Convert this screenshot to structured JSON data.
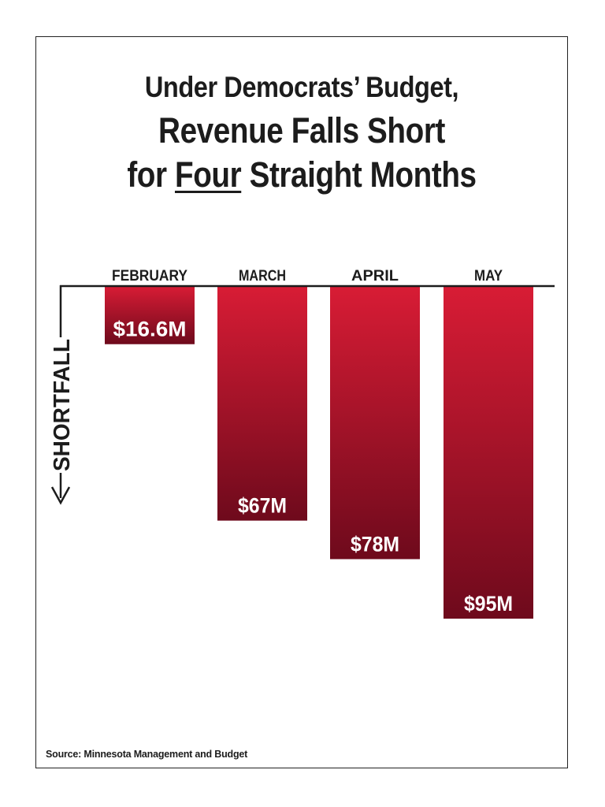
{
  "title": {
    "line1": "Under Democrats’ Budget,",
    "line2": "Revenue Falls Short",
    "line3_pre": "for ",
    "line3_underlined": "Four",
    "line3_post": " Straight Months"
  },
  "chart_data": {
    "type": "bar",
    "orientation": "downward",
    "categories": [
      "FEBRUARY",
      "MARCH",
      "APRIL",
      "MAY"
    ],
    "values": [
      16.6,
      67,
      78,
      95
    ],
    "value_labels": [
      "$16.6M",
      "$67M",
      "$78M",
      "$95M"
    ],
    "ylabel": "SHORTFALL",
    "ylim": [
      0,
      95
    ],
    "grid": false,
    "colors": {
      "bar_top": "#d81c35",
      "bar_bottom": "#6e0a1c",
      "label": "#ffffff",
      "axis": "#1c1c1c"
    }
  },
  "source": "Source: Minnesota Management and Budget"
}
